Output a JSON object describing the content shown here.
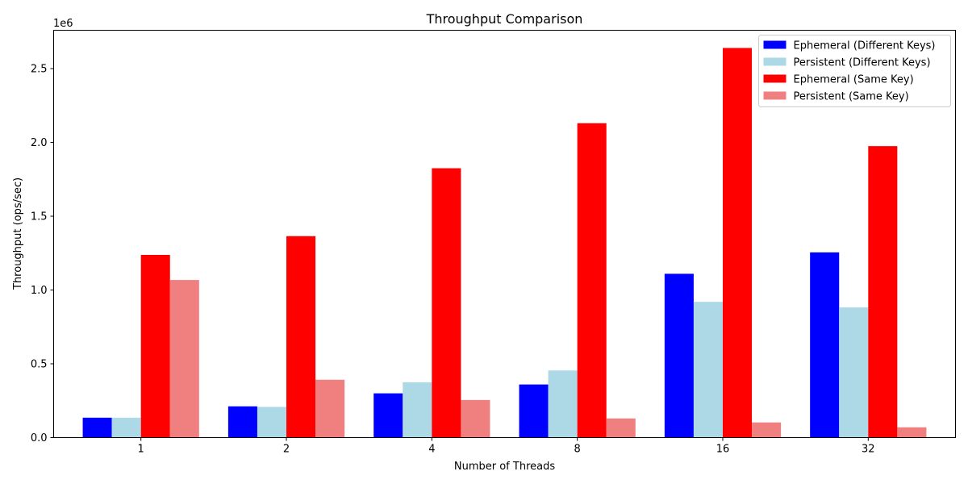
{
  "chart_data": {
    "type": "bar",
    "title": "Throughput Comparison",
    "xlabel": "Number of Threads",
    "ylabel": "Throughput (ops/sec)",
    "y_scale_label": "1e6",
    "categories": [
      "1",
      "2",
      "4",
      "8",
      "16",
      "32"
    ],
    "ylim": [
      0,
      2760000
    ],
    "yticks": [
      0,
      500000,
      1000000,
      1500000,
      2000000,
      2500000
    ],
    "ytick_labels": [
      "0.0",
      "0.5",
      "1.0",
      "1.5",
      "2.0",
      "2.5"
    ],
    "grid": false,
    "legend_position": "top-right",
    "series": [
      {
        "name": "Ephemeral (Different Keys)",
        "color": "#0000ff",
        "values": [
          135000,
          212000,
          300000,
          360000,
          1110000,
          1255000
        ]
      },
      {
        "name": "Persistent (Different Keys)",
        "color": "#add8e6",
        "values": [
          135000,
          208000,
          375000,
          455000,
          920000,
          882000
        ]
      },
      {
        "name": "Ephemeral (Same Key)",
        "color": "#ff0000",
        "values": [
          1238000,
          1365000,
          1825000,
          2130000,
          2640000,
          1975000
        ]
      },
      {
        "name": "Persistent (Same Key)",
        "color": "#f08080",
        "values": [
          1068000,
          392000,
          255000,
          130000,
          103000,
          70000
        ]
      }
    ]
  }
}
